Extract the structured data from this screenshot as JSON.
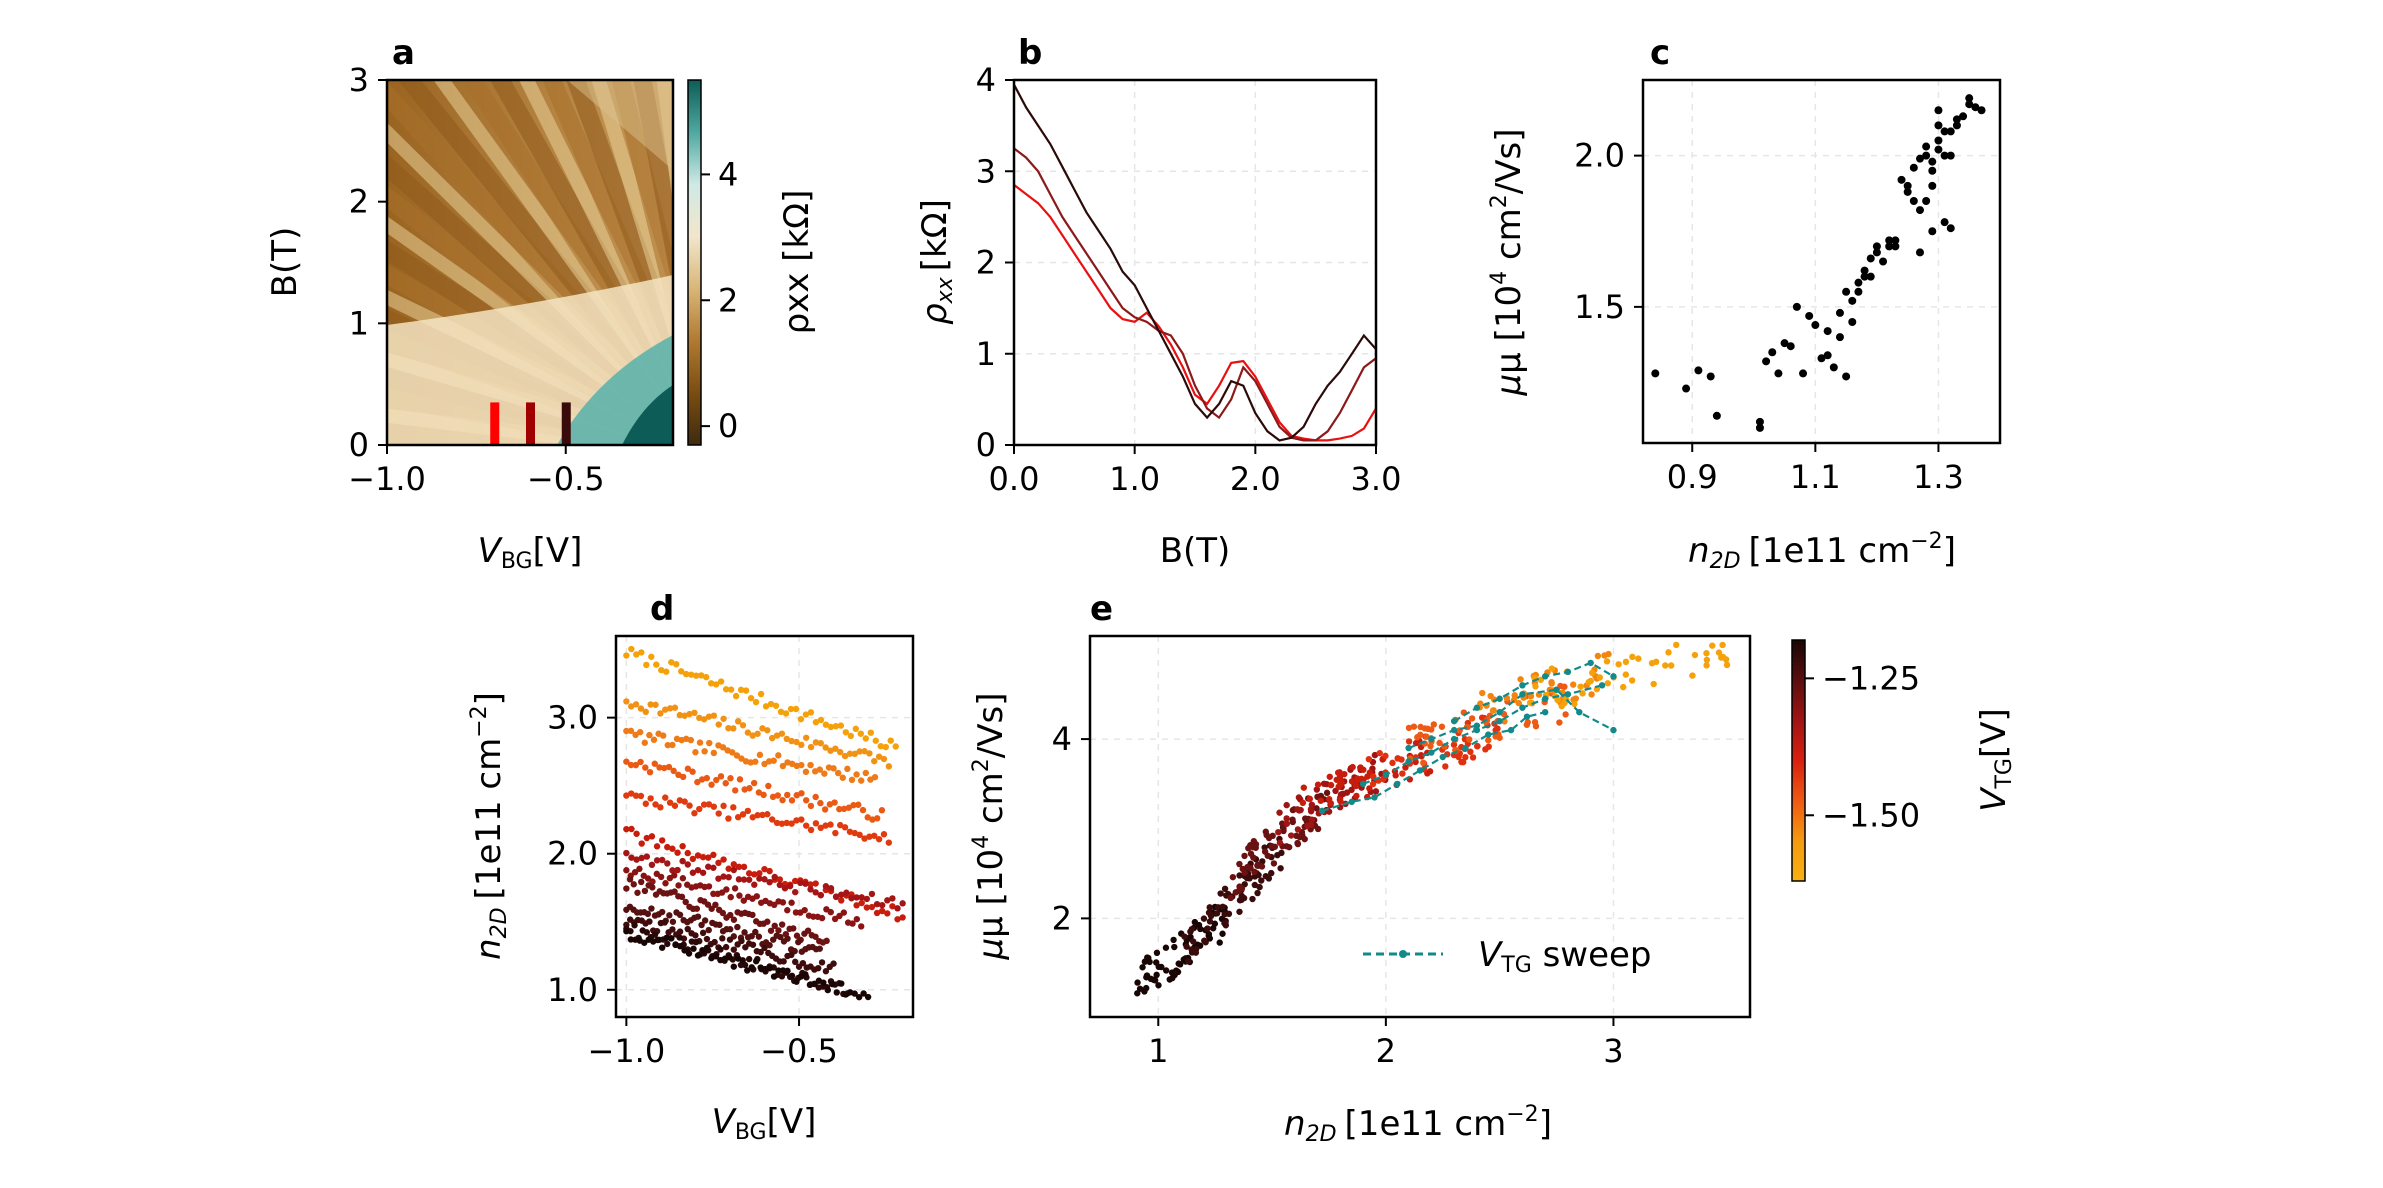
{
  "chart_data": [
    {
      "panel": "a",
      "type": "heatmap",
      "xlabel_main": "V",
      "xlabel_sub": "BG",
      "xlabel_unit": "[V]",
      "ylabel": "B(T)",
      "xlim": [
        -1.0,
        -0.2
      ],
      "ylim": [
        0,
        3
      ],
      "xticks": [
        "−1.0",
        "−0.5"
      ],
      "xtick_values": [
        -1.0,
        -0.5
      ],
      "yticks": [
        "0",
        "1",
        "2",
        "3"
      ],
      "ytick_values": [
        0,
        1,
        2,
        3
      ],
      "colorbar_label": "ρxx [kΩ]",
      "colorbar_range": [
        -0.3,
        5.5
      ],
      "colorbar_ticks": [
        "0",
        "2",
        "4"
      ],
      "colorbar_tick_values": [
        0,
        2,
        4
      ],
      "colormap": [
        "#3d2b0f",
        "#7a4d12",
        "#b07a32",
        "#d9b678",
        "#f2e6cc",
        "#cfe9e5",
        "#4fa8a0",
        "#0d5c57"
      ],
      "markers": [
        {
          "x": -0.7,
          "color": "#ff0000"
        },
        {
          "x": -0.6,
          "color": "#a00000"
        },
        {
          "x": -0.5,
          "color": "#3a0a0a"
        }
      ]
    },
    {
      "panel": "b",
      "type": "line",
      "xlabel": "B(T)",
      "ylabel_main": "ρ",
      "ylabel_sub": "xx",
      "ylabel_unit": "[kΩ]",
      "xlim": [
        0,
        3
      ],
      "ylim": [
        0,
        4
      ],
      "xticks": [
        "0.0",
        "1.0",
        "2.0",
        "3.0"
      ],
      "xtick_values": [
        0,
        1,
        2,
        3
      ],
      "yticks": [
        "0",
        "1",
        "2",
        "3",
        "4"
      ],
      "ytick_values": [
        0,
        1,
        2,
        3,
        4
      ],
      "grid": true,
      "series": [
        {
          "color": "#e81010",
          "x": [
            0,
            0.1,
            0.2,
            0.3,
            0.4,
            0.5,
            0.6,
            0.7,
            0.8,
            0.9,
            1.0,
            1.1,
            1.2,
            1.3,
            1.4,
            1.5,
            1.6,
            1.7,
            1.8,
            1.9,
            2.0,
            2.1,
            2.2,
            2.3,
            2.4,
            2.5,
            2.6,
            2.7,
            2.8,
            2.9,
            3.0
          ],
          "y": [
            2.85,
            2.75,
            2.65,
            2.5,
            2.3,
            2.1,
            1.9,
            1.7,
            1.5,
            1.38,
            1.35,
            1.45,
            1.3,
            1.1,
            0.85,
            0.55,
            0.45,
            0.65,
            0.9,
            0.92,
            0.75,
            0.5,
            0.25,
            0.1,
            0.07,
            0.05,
            0.05,
            0.07,
            0.1,
            0.18,
            0.4
          ]
        },
        {
          "color": "#8c1a1a",
          "x": [
            0,
            0.1,
            0.2,
            0.3,
            0.4,
            0.5,
            0.6,
            0.7,
            0.8,
            0.9,
            1.0,
            1.1,
            1.2,
            1.3,
            1.4,
            1.5,
            1.6,
            1.7,
            1.8,
            1.9,
            2.0,
            2.1,
            2.2,
            2.3,
            2.4,
            2.5,
            2.6,
            2.7,
            2.8,
            2.9,
            3.0
          ],
          "y": [
            3.25,
            3.15,
            3.0,
            2.75,
            2.5,
            2.3,
            2.1,
            1.9,
            1.7,
            1.5,
            1.4,
            1.35,
            1.25,
            1.2,
            1.0,
            0.65,
            0.4,
            0.3,
            0.5,
            0.85,
            0.7,
            0.45,
            0.2,
            0.08,
            0.05,
            0.05,
            0.15,
            0.35,
            0.6,
            0.85,
            0.95
          ]
        },
        {
          "color": "#2b0a0a",
          "x": [
            0,
            0.1,
            0.2,
            0.3,
            0.4,
            0.5,
            0.6,
            0.7,
            0.8,
            0.9,
            1.0,
            1.1,
            1.2,
            1.3,
            1.4,
            1.5,
            1.6,
            1.7,
            1.8,
            1.9,
            2.0,
            2.1,
            2.2,
            2.3,
            2.4,
            2.5,
            2.6,
            2.7,
            2.8,
            2.9,
            3.0
          ],
          "y": [
            3.95,
            3.7,
            3.5,
            3.3,
            3.05,
            2.8,
            2.55,
            2.35,
            2.15,
            1.9,
            1.75,
            1.5,
            1.25,
            1.0,
            0.75,
            0.45,
            0.3,
            0.45,
            0.7,
            0.65,
            0.35,
            0.15,
            0.05,
            0.08,
            0.2,
            0.45,
            0.65,
            0.8,
            1.0,
            1.2,
            1.05
          ]
        }
      ]
    },
    {
      "panel": "c",
      "type": "scatter",
      "xlabel_main": "n",
      "xlabel_sub": "2D",
      "xlabel_unit": "[1e11 cm",
      "xlabel_sup": "−2",
      "xlabel_end": "]",
      "ylabel_pre": "μ [10",
      "ylabel_sup1": "4",
      "ylabel_mid": " cm",
      "ylabel_sup2": "2",
      "ylabel_end": "/Vs]",
      "xlim": [
        0.82,
        1.4
      ],
      "ylim": [
        1.05,
        2.25
      ],
      "xticks": [
        "0.9",
        "1.1",
        "1.3"
      ],
      "xtick_values": [
        0.9,
        1.1,
        1.3
      ],
      "yticks": [
        "1.5",
        "2.0"
      ],
      "ytick_values": [
        1.5,
        2.0
      ],
      "grid": true,
      "x": [
        0.84,
        0.89,
        0.91,
        0.93,
        0.94,
        1.01,
        1.01,
        1.02,
        1.03,
        1.04,
        1.05,
        1.07,
        1.08,
        1.09,
        1.1,
        1.11,
        1.12,
        1.13,
        1.14,
        1.15,
        1.16,
        1.16,
        1.17,
        1.18,
        1.19,
        1.2,
        1.21,
        1.22,
        1.23,
        1.25,
        1.26,
        1.27,
        1.27,
        1.28,
        1.28,
        1.29,
        1.29,
        1.3,
        1.3,
        1.3,
        1.31,
        1.31,
        1.32,
        1.32,
        1.33,
        1.34,
        1.35,
        1.35,
        1.36,
        1.37,
        1.15,
        1.17,
        1.18,
        1.2,
        1.22,
        1.24,
        1.26,
        1.27,
        1.28,
        1.29,
        1.3,
        1.31,
        1.32,
        1.33,
        1.12,
        1.14,
        1.19,
        1.23,
        1.25,
        1.29,
        1.06
      ],
      "y": [
        1.28,
        1.23,
        1.29,
        1.27,
        1.14,
        1.1,
        1.12,
        1.32,
        1.35,
        1.28,
        1.38,
        1.5,
        1.28,
        1.47,
        1.44,
        1.33,
        1.34,
        1.3,
        1.4,
        1.27,
        1.45,
        1.52,
        1.58,
        1.62,
        1.66,
        1.7,
        1.65,
        1.7,
        1.72,
        1.88,
        1.96,
        1.99,
        1.68,
        1.85,
        2.03,
        1.75,
        1.9,
        2.05,
        2.1,
        2.15,
        1.78,
        2.0,
        1.76,
        2.08,
        2.12,
        2.13,
        2.17,
        2.19,
        2.16,
        2.15,
        1.55,
        1.55,
        1.6,
        1.68,
        1.72,
        1.92,
        1.85,
        1.82,
        2.0,
        1.95,
        2.02,
        2.08,
        2.0,
        2.1,
        1.42,
        1.48,
        1.6,
        1.7,
        1.9,
        1.98,
        1.37
      ]
    },
    {
      "panel": "d",
      "type": "scatter",
      "xlabel_main": "V",
      "xlabel_sub": "BG",
      "xlabel_unit": "[V]",
      "ylabel_main": "n",
      "ylabel_sub": "2D",
      "ylabel_unit": "[1e11 cm",
      "ylabel_sup": "−2",
      "ylabel_end": "]",
      "xlim": [
        -1.03,
        -0.17
      ],
      "ylim": [
        0.8,
        3.6
      ],
      "xticks": [
        "−1.0",
        "−0.5"
      ],
      "xtick_values": [
        -1.0,
        -0.5
      ],
      "yticks": [
        "1.0",
        "2.0",
        "3.0"
      ],
      "ytick_values": [
        1.0,
        2.0,
        3.0
      ],
      "grid": true,
      "series": [
        {
          "color": "#f5a10a",
          "start": 3.48,
          "end": 2.78,
          "xend": -0.22
        },
        {
          "color": "#f29215",
          "start": 3.12,
          "end": 2.68,
          "xend": -0.24
        },
        {
          "color": "#ee7a18",
          "start": 2.88,
          "end": 2.55,
          "xend": -0.28
        },
        {
          "color": "#ea5a14",
          "start": 2.68,
          "end": 2.28,
          "xend": -0.26
        },
        {
          "color": "#e03a0f",
          "start": 2.42,
          "end": 2.12,
          "xend": -0.24
        },
        {
          "color": "#c81d0c",
          "start": 2.15,
          "end": 1.55,
          "xend": -0.2
        },
        {
          "color": "#a51515",
          "start": 1.98,
          "end": 1.62,
          "xend": -0.2
        },
        {
          "color": "#8a1414",
          "start": 1.88,
          "end": 1.5,
          "xend": -0.32
        },
        {
          "color": "#6d1212",
          "start": 1.78,
          "end": 1.35,
          "xend": -0.42
        },
        {
          "color": "#551010",
          "start": 1.62,
          "end": 1.28,
          "xend": -0.44
        },
        {
          "color": "#3e0c0c",
          "start": 1.52,
          "end": 1.15,
          "xend": -0.4
        },
        {
          "color": "#2a0808",
          "start": 1.45,
          "end": 1.0,
          "xend": -0.36
        },
        {
          "color": "#1a0505",
          "start": 1.42,
          "end": 0.95,
          "xend": -0.3
        }
      ]
    },
    {
      "panel": "e",
      "type": "scatter",
      "xlabel_main": "n",
      "xlabel_sub": "2D",
      "xlabel_unit": "[1e11 cm",
      "xlabel_sup": "−2",
      "xlabel_end": "]",
      "ylabel_pre": "μ [10",
      "ylabel_sup1": "4",
      "ylabel_mid": " cm",
      "ylabel_sup2": "2",
      "ylabel_end": "/Vs]",
      "xlim": [
        0.7,
        3.6
      ],
      "ylim": [
        0.9,
        5.15
      ],
      "xticks": [
        "1",
        "2",
        "3"
      ],
      "xtick_values": [
        1,
        2,
        3
      ],
      "yticks": [
        "2",
        "4"
      ],
      "ytick_values": [
        2,
        4
      ],
      "grid": true,
      "colorbar_label_main": "V",
      "colorbar_label_sub": "TG",
      "colorbar_label_unit": "[V]",
      "colorbar_range": [
        -1.18,
        -1.62
      ],
      "colorbar_ticks": [
        "−1.25",
        "−1.50"
      ],
      "colorbar_tick_values": [
        -1.25,
        -1.5
      ],
      "colorbar_colors": [
        "#1a0505",
        "#5a0f0f",
        "#a01414",
        "#d8200f",
        "#ee5a14",
        "#f59a10",
        "#f7b012"
      ],
      "legend": {
        "label_main": "V",
        "label_sub": "TG",
        "label_tail": " sweep",
        "color": "#138a8a",
        "position": "lower-right"
      },
      "sweep_series": [
        {
          "x": [
            1.72,
            1.85,
            1.95,
            2.05,
            2.15,
            2.25,
            2.35,
            2.45,
            2.55,
            2.62,
            2.7
          ],
          "y": [
            3.2,
            3.3,
            3.35,
            3.5,
            3.65,
            3.8,
            3.9,
            4.05,
            4.1,
            4.25,
            4.3
          ]
        },
        {
          "x": [
            1.9,
            2.0,
            2.1,
            2.2,
            2.3,
            2.4,
            2.5,
            2.6,
            2.7,
            2.8,
            2.95
          ],
          "y": [
            3.5,
            3.6,
            3.75,
            3.85,
            4.0,
            4.1,
            4.2,
            4.35,
            4.45,
            4.5,
            4.6
          ]
        },
        {
          "x": [
            2.3,
            2.4,
            2.5,
            2.6,
            2.7,
            2.8,
            2.9,
            3.0
          ],
          "y": [
            4.2,
            4.35,
            4.45,
            4.6,
            4.7,
            4.75,
            4.85,
            4.7
          ]
        },
        {
          "x": [
            2.1,
            2.2,
            2.3,
            2.4,
            2.5,
            2.6,
            2.75,
            2.85,
            3.0
          ],
          "y": [
            3.9,
            4.0,
            4.1,
            4.15,
            4.3,
            4.5,
            4.55,
            4.3,
            4.1
          ]
        }
      ],
      "cloud_bands": [
        {
          "color": "#1a0505",
          "x0": 0.9,
          "x1": 1.3,
          "y0": 1.25,
          "y1": 2.0,
          "n": 70
        },
        {
          "color": "#3a0b0b",
          "x0": 1.1,
          "x1": 1.55,
          "y0": 1.6,
          "y1": 2.8,
          "n": 70
        },
        {
          "color": "#6a1212",
          "x0": 1.3,
          "x1": 1.75,
          "y0": 2.4,
          "y1": 3.3,
          "n": 70
        },
        {
          "color": "#a01414",
          "x0": 1.5,
          "x1": 2.0,
          "y0": 3.0,
          "y1": 3.7,
          "n": 60
        },
        {
          "color": "#c81d0c",
          "x0": 1.6,
          "x1": 2.2,
          "y0": 3.3,
          "y1": 3.8,
          "n": 50
        },
        {
          "color": "#e0300f",
          "x0": 1.9,
          "x1": 2.5,
          "y0": 3.6,
          "y1": 4.1,
          "n": 50
        },
        {
          "color": "#ee5a14",
          "x0": 2.1,
          "x1": 2.8,
          "y0": 3.9,
          "y1": 4.4,
          "n": 50
        },
        {
          "color": "#f2850f",
          "x0": 2.4,
          "x1": 3.0,
          "y0": 4.3,
          "y1": 4.8,
          "n": 45
        },
        {
          "color": "#f5a10a",
          "x0": 2.6,
          "x1": 3.5,
          "y0": 4.5,
          "y1": 4.95,
          "n": 50
        }
      ]
    }
  ],
  "panel_labels": {
    "a": "a",
    "b": "b",
    "c": "c",
    "d": "d",
    "e": "e"
  }
}
